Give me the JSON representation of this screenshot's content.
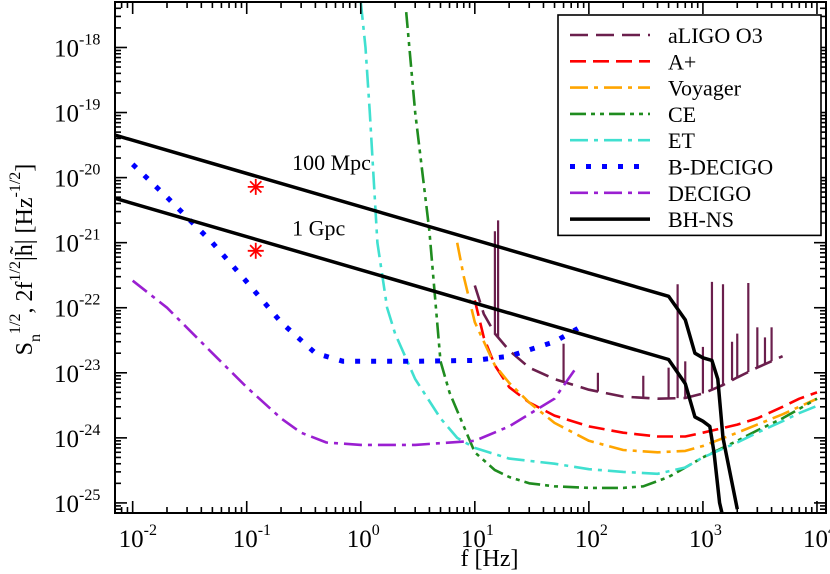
{
  "chart_data": {
    "type": "line",
    "xscale": "log",
    "yscale": "log",
    "xlim": [
      0.007,
      12000
    ],
    "ylim": [
      7e-26,
      5e-18
    ],
    "xlabel": "f [Hz]",
    "ylabel": {
      "prefix": "S",
      "sub_n": "n",
      "sup_half": "1/2",
      "middle": ",  2f",
      "sup_half2": "1/2",
      "habs": "|h̃|",
      "units_open": "  [Hz",
      "units_sup": "-1/2",
      "units_close": "]"
    },
    "x_ticks": [
      {
        "value": 0.01,
        "base": "10",
        "exp": "-2"
      },
      {
        "value": 0.1,
        "base": "10",
        "exp": "-1"
      },
      {
        "value": 1,
        "base": "10",
        "exp": "0"
      },
      {
        "value": 10,
        "base": "10",
        "exp": "1"
      },
      {
        "value": 100,
        "base": "10",
        "exp": "2"
      },
      {
        "value": 1000,
        "base": "10",
        "exp": "3"
      },
      {
        "value": 10000,
        "base": "10",
        "exp": "4"
      }
    ],
    "y_ticks": [
      {
        "value": 1e-25,
        "base": "10",
        "exp": "-25"
      },
      {
        "value": 1e-24,
        "base": "10",
        "exp": "-24"
      },
      {
        "value": 1e-23,
        "base": "10",
        "exp": "-23"
      },
      {
        "value": 1e-22,
        "base": "10",
        "exp": "-22"
      },
      {
        "value": 1e-21,
        "base": "10",
        "exp": "-21"
      },
      {
        "value": 1e-20,
        "base": "10",
        "exp": "-20"
      },
      {
        "value": 1e-19,
        "base": "10",
        "exp": "-19"
      },
      {
        "value": 1e-18,
        "base": "10",
        "exp": "-18"
      }
    ],
    "legend_position": "top-right",
    "series": [
      {
        "name": "aLIGO O3",
        "color": "#6b1f4d",
        "dash": "long-dash",
        "points": [
          [
            10,
            2.2e-22
          ],
          [
            12,
            8e-23
          ],
          [
            15,
            4e-23
          ],
          [
            20,
            2.2e-23
          ],
          [
            30,
            1.2e-23
          ],
          [
            50,
            8e-24
          ],
          [
            100,
            5.5e-24
          ],
          [
            200,
            4.3e-24
          ],
          [
            400,
            4e-24
          ],
          [
            700,
            4.1e-24
          ],
          [
            1000,
            4.8e-24
          ],
          [
            1500,
            6.5e-24
          ],
          [
            2000,
            8.5e-24
          ],
          [
            3000,
            1.2e-23
          ],
          [
            5000,
            1.8e-23
          ]
        ],
        "spikes": [
          [
            15,
            1.5e-21
          ],
          [
            16,
            2.2e-21
          ],
          [
            60,
            2.8e-23
          ],
          [
            120,
            1e-23
          ],
          [
            300,
            9e-24
          ],
          [
            500,
            1.2e-23
          ],
          [
            600,
            2.3e-22
          ],
          [
            700,
            1.5e-23
          ],
          [
            1000,
            2.5e-23
          ],
          [
            1200,
            2.5e-22
          ],
          [
            1500,
            2.3e-22
          ],
          [
            1800,
            3e-23
          ],
          [
            2000,
            4e-23
          ],
          [
            2500,
            2.4e-22
          ],
          [
            3000,
            5e-23
          ],
          [
            3500,
            3.5e-23
          ],
          [
            4000,
            5e-23
          ]
        ]
      },
      {
        "name": "A+",
        "color": "#ff0000",
        "dash": "dash",
        "points": [
          [
            10,
            1.3e-22
          ],
          [
            12,
            3.5e-23
          ],
          [
            15,
            1.3e-23
          ],
          [
            20,
            6e-24
          ],
          [
            30,
            3.5e-24
          ],
          [
            50,
            2.2e-24
          ],
          [
            100,
            1.5e-24
          ],
          [
            200,
            1.2e-24
          ],
          [
            400,
            1.05e-24
          ],
          [
            700,
            1.05e-24
          ],
          [
            1000,
            1.2e-24
          ],
          [
            2000,
            1.6e-24
          ],
          [
            3000,
            2e-24
          ],
          [
            5000,
            3e-24
          ],
          [
            7000,
            4e-24
          ],
          [
            10000,
            5e-24
          ]
        ]
      },
      {
        "name": "Voyager",
        "color": "#ffa500",
        "dash": "dash-dot",
        "points": [
          [
            7,
            1e-21
          ],
          [
            8,
            3e-22
          ],
          [
            10,
            6e-23
          ],
          [
            15,
            1.3e-23
          ],
          [
            20,
            7e-24
          ],
          [
            30,
            3.5e-24
          ],
          [
            50,
            1.7e-24
          ],
          [
            100,
            9e-25
          ],
          [
            200,
            6.5e-25
          ],
          [
            400,
            6e-25
          ],
          [
            700,
            6.3e-25
          ],
          [
            1000,
            7.5e-25
          ],
          [
            2000,
            1.2e-24
          ],
          [
            3000,
            1.6e-24
          ],
          [
            5000,
            2.3e-24
          ],
          [
            7000,
            3e-24
          ],
          [
            10000,
            4e-24
          ]
        ]
      },
      {
        "name": "CE",
        "color": "#1f8c1f",
        "dash": "dash-dot-dot",
        "points": [
          [
            2.5,
            3.5e-18
          ],
          [
            3,
            1e-19
          ],
          [
            4,
            1.5e-21
          ],
          [
            5,
            1.5e-23
          ],
          [
            6,
            5e-24
          ],
          [
            8,
            1.5e-24
          ],
          [
            10,
            6e-25
          ],
          [
            15,
            3.2e-25
          ],
          [
            20,
            2.5e-25
          ],
          [
            30,
            2e-25
          ],
          [
            50,
            1.8e-25
          ],
          [
            100,
            1.7e-25
          ],
          [
            200,
            1.7e-25
          ],
          [
            300,
            1.8e-25
          ],
          [
            500,
            2.5e-25
          ],
          [
            700,
            3.5e-25
          ],
          [
            1000,
            5e-25
          ],
          [
            2000,
            9e-25
          ],
          [
            3000,
            1.3e-24
          ],
          [
            5000,
            2e-24
          ],
          [
            7000,
            2.8e-24
          ],
          [
            10000,
            4e-24
          ]
        ]
      },
      {
        "name": "ET",
        "color": "#40e0d0",
        "dash": "dash-dot",
        "points": [
          [
            1,
            5e-18
          ],
          [
            1.1,
            1e-18
          ],
          [
            1.2,
            1e-19
          ],
          [
            1.4,
            1e-21
          ],
          [
            1.7,
            1e-22
          ],
          [
            2,
            4e-23
          ],
          [
            3,
            8e-24
          ],
          [
            5,
            2e-24
          ],
          [
            7,
            1e-24
          ],
          [
            10,
            7e-25
          ],
          [
            20,
            4.8e-25
          ],
          [
            50,
            4e-25
          ],
          [
            100,
            3.3e-25
          ],
          [
            200,
            3e-25
          ],
          [
            400,
            2.8e-25
          ],
          [
            700,
            3.5e-25
          ],
          [
            1000,
            5e-25
          ],
          [
            2000,
            8.5e-25
          ],
          [
            3000,
            1.2e-24
          ],
          [
            5000,
            1.8e-24
          ],
          [
            7000,
            2.4e-24
          ],
          [
            10000,
            3.1e-24
          ]
        ]
      },
      {
        "name": "B-DECIGO",
        "color": "#0000ff",
        "dash": "dot",
        "points": [
          [
            0.01,
            1.6e-20
          ],
          [
            0.02,
            5e-21
          ],
          [
            0.05,
            1e-21
          ],
          [
            0.1,
            2.5e-22
          ],
          [
            0.2,
            6e-23
          ],
          [
            0.4,
            2e-23
          ],
          [
            0.7,
            1.5e-23
          ],
          [
            1,
            1.5e-23
          ],
          [
            3,
            1.5e-23
          ],
          [
            10,
            1.55e-23
          ],
          [
            20,
            1.8e-23
          ],
          [
            50,
            3e-23
          ],
          [
            80,
            4.8e-23
          ]
        ]
      },
      {
        "name": "DECIGO",
        "color": "#9a1fd1",
        "dash": "dash-dot",
        "points": [
          [
            0.01,
            2.6e-22
          ],
          [
            0.02,
            1e-22
          ],
          [
            0.05,
            2e-23
          ],
          [
            0.1,
            6e-24
          ],
          [
            0.2,
            2e-24
          ],
          [
            0.3,
            1.2e-24
          ],
          [
            0.5,
            8.5e-25
          ],
          [
            1,
            7.8e-25
          ],
          [
            3,
            7.8e-25
          ],
          [
            10,
            9e-25
          ],
          [
            20,
            1.5e-24
          ],
          [
            50,
            4e-24
          ],
          [
            80,
            1.3e-23
          ]
        ]
      },
      {
        "name": "BH-NS",
        "color": "#000000",
        "dash": "solid",
        "points": [
          [
            0.007,
            4.5e-20
          ],
          [
            500,
            1.5e-22
          ],
          [
            700,
            6.5e-23
          ],
          [
            850,
            2e-23
          ],
          [
            1000,
            1.7e-23
          ],
          [
            1200,
            1.55e-23
          ],
          [
            1350,
            8e-24
          ],
          [
            1500,
            1e-24
          ],
          [
            2000,
            8e-26
          ]
        ]
      },
      {
        "name": "",
        "color": "#000000",
        "dash": "solid",
        "legend": false,
        "points": [
          [
            0.007,
            4.8e-21
          ],
          [
            500,
            1.6e-23
          ],
          [
            700,
            6.8e-24
          ],
          [
            850,
            2.1e-24
          ],
          [
            1000,
            1.8e-24
          ],
          [
            1150,
            1.5e-24
          ],
          [
            1250,
            6e-25
          ],
          [
            1400,
            1e-25
          ],
          [
            1500,
            6e-26
          ]
        ]
      }
    ],
    "annotations": [
      {
        "text": "100 Mpc",
        "x": 0.25,
        "y": 1.3e-20
      },
      {
        "text": "1 Gpc",
        "x": 0.25,
        "y": 1.3e-21
      }
    ],
    "markers": [
      {
        "label": "100 Mpc",
        "x": 0.12,
        "y": 7.2e-21,
        "color": "#ff0000"
      },
      {
        "label": "1 Gpc",
        "x": 0.12,
        "y": 7.5e-22,
        "color": "#ff0000"
      }
    ]
  }
}
